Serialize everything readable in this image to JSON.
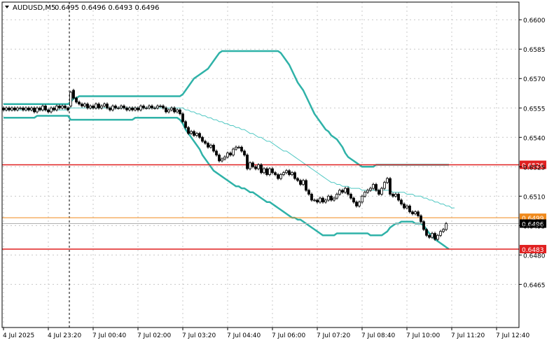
{
  "header": {
    "symbol": "AUDUSD,M5",
    "ohlc": "0.6495 0.6496 0.6493 0.6496"
  },
  "colors": {
    "background": "#ffffff",
    "grid": "#c8c8c8",
    "axis": "#000000",
    "candle": "#000000",
    "bollinger": "#2fb2a8",
    "ma": "#4ec7c2",
    "level_red": "#e02020",
    "level_orange": "#f08a1c",
    "price_line": "#b0b0b0"
  },
  "chart_data": {
    "type": "candlestick",
    "timeframe": "M5",
    "ylim": [
      0.6443,
      0.6609
    ],
    "yticks": [
      "0.6600",
      "0.6585",
      "0.6570",
      "0.6555",
      "0.6540",
      "0.6525",
      "0.6510",
      "0.6495",
      "0.6480",
      "0.6465"
    ],
    "ytick_values": [
      0.66,
      0.6585,
      0.657,
      0.6555,
      0.654,
      0.6525,
      0.651,
      0.6495,
      0.648,
      0.6465
    ],
    "xticks": [
      "4 Jul 2025",
      "4 Jul 23:20",
      "7 Jul 00:40",
      "7 Jul 02:00",
      "7 Jul 03:20",
      "7 Jul 04:40",
      "7 Jul 06:00",
      "7 Jul 07:20",
      "7 Jul 08:40",
      "7 Jul 10:00",
      "7 Jul 11:20",
      "7 Jul 12:40"
    ],
    "xtick_bar_index": [
      0,
      16,
      32,
      48,
      64,
      80,
      96,
      112,
      128,
      144,
      160,
      176
    ],
    "session_break_index": 24,
    "horizontal_levels": [
      {
        "label": "0.6526",
        "value": 0.6526,
        "color": "#e02020"
      },
      {
        "label": "0.6499",
        "value": 0.6499,
        "color": "#f08a1c"
      },
      {
        "label": "0.6496",
        "value": 0.6496,
        "color": "#b0b0b0",
        "current": true
      },
      {
        "label": "0.6483",
        "value": 0.6483,
        "color": "#e02020"
      }
    ],
    "close": [
      0.6554,
      0.6555,
      0.6554,
      0.6555,
      0.6554,
      0.6555,
      0.6555,
      0.6554,
      0.6555,
      0.6554,
      0.6555,
      0.6553,
      0.6555,
      0.6554,
      0.6556,
      0.6554,
      0.6553,
      0.6555,
      0.6554,
      0.6556,
      0.6555,
      0.6556,
      0.6555,
      0.6554,
      0.6563,
      0.656,
      0.6558,
      0.6557,
      0.6556,
      0.6557,
      0.6555,
      0.6556,
      0.6555,
      0.6557,
      0.6555,
      0.6556,
      0.6557,
      0.6555,
      0.6554,
      0.6556,
      0.6555,
      0.6555,
      0.6556,
      0.6555,
      0.6554,
      0.6555,
      0.6554,
      0.6555,
      0.6554,
      0.6556,
      0.6555,
      0.6555,
      0.6556,
      0.6555,
      0.6555,
      0.6556,
      0.6556,
      0.6555,
      0.6553,
      0.6554,
      0.6555,
      0.6553,
      0.6554,
      0.6552,
      0.6548,
      0.6545,
      0.6542,
      0.6543,
      0.6541,
      0.6542,
      0.654,
      0.6538,
      0.6537,
      0.6535,
      0.6536,
      0.6533,
      0.6531,
      0.6528,
      0.6529,
      0.653,
      0.6532,
      0.6531,
      0.6534,
      0.6535,
      0.6535,
      0.6533,
      0.6531,
      0.6524,
      0.6527,
      0.6525,
      0.6524,
      0.6526,
      0.6522,
      0.6524,
      0.6521,
      0.6524,
      0.6522,
      0.6521,
      0.6519,
      0.6521,
      0.6522,
      0.6523,
      0.6521,
      0.6522,
      0.6519,
      0.6518,
      0.6516,
      0.6518,
      0.6513,
      0.6511,
      0.6508,
      0.6508,
      0.6507,
      0.6509,
      0.6507,
      0.6508,
      0.651,
      0.6508,
      0.6509,
      0.6511,
      0.6513,
      0.6512,
      0.6514,
      0.6511,
      0.6509,
      0.6507,
      0.6505,
      0.6507,
      0.651,
      0.6512,
      0.6513,
      0.6514,
      0.6516,
      0.6513,
      0.6511,
      0.6514,
      0.6517,
      0.6519,
      0.6511,
      0.651,
      0.6511,
      0.6508,
      0.6506,
      0.6504,
      0.6505,
      0.6502,
      0.6501,
      0.6502,
      0.65,
      0.6497,
      0.6493,
      0.649,
      0.6489,
      0.6491,
      0.6488,
      0.649,
      0.6492,
      0.6493,
      0.6496
    ],
    "open": [
      0.6555,
      0.6554,
      0.6555,
      0.6554,
      0.6555,
      0.6554,
      0.6555,
      0.6555,
      0.6554,
      0.6555,
      0.6554,
      0.6555,
      0.6553,
      0.6555,
      0.6554,
      0.6556,
      0.6554,
      0.6553,
      0.6555,
      0.6554,
      0.6556,
      0.6555,
      0.6556,
      0.6555,
      0.6556,
      0.6564,
      0.656,
      0.6558,
      0.6557,
      0.6556,
      0.6557,
      0.6555,
      0.6556,
      0.6555,
      0.6557,
      0.6555,
      0.6556,
      0.6557,
      0.6555,
      0.6554,
      0.6556,
      0.6555,
      0.6555,
      0.6556,
      0.6555,
      0.6554,
      0.6555,
      0.6554,
      0.6555,
      0.6554,
      0.6556,
      0.6555,
      0.6555,
      0.6556,
      0.6555,
      0.6555,
      0.6556,
      0.6556,
      0.6555,
      0.6553,
      0.6554,
      0.6555,
      0.6553,
      0.6554,
      0.6552,
      0.6548,
      0.6545,
      0.6542,
      0.6543,
      0.6541,
      0.6542,
      0.654,
      0.6538,
      0.6537,
      0.6535,
      0.6536,
      0.6533,
      0.6531,
      0.6528,
      0.6529,
      0.653,
      0.6532,
      0.6531,
      0.6534,
      0.6535,
      0.6535,
      0.6533,
      0.6531,
      0.6524,
      0.6527,
      0.6525,
      0.6524,
      0.6526,
      0.6522,
      0.6524,
      0.6521,
      0.6524,
      0.6522,
      0.6521,
      0.6519,
      0.6521,
      0.6522,
      0.6523,
      0.6521,
      0.6522,
      0.6519,
      0.6518,
      0.6516,
      0.6518,
      0.6513,
      0.6511,
      0.6508,
      0.6508,
      0.6507,
      0.6509,
      0.6507,
      0.6508,
      0.651,
      0.6508,
      0.6509,
      0.6511,
      0.6513,
      0.6512,
      0.6514,
      0.6511,
      0.6509,
      0.6507,
      0.6505,
      0.6507,
      0.651,
      0.6512,
      0.6513,
      0.6514,
      0.6516,
      0.6513,
      0.6511,
      0.6514,
      0.6517,
      0.6519,
      0.6511,
      0.651,
      0.6511,
      0.6508,
      0.6506,
      0.6504,
      0.6505,
      0.6502,
      0.6501,
      0.6502,
      0.65,
      0.6497,
      0.6493,
      0.649,
      0.6489,
      0.6491,
      0.6488,
      0.649,
      0.6492,
      0.6493
    ],
    "bollinger_upper": [
      0.6557,
      0.6557,
      0.6557,
      0.6557,
      0.6557,
      0.6557,
      0.6557,
      0.6557,
      0.6557,
      0.6557,
      0.6557,
      0.6557,
      0.6557,
      0.6557,
      0.6557,
      0.6557,
      0.6557,
      0.6557,
      0.6557,
      0.6557,
      0.6557,
      0.6557,
      0.6557,
      0.6557,
      0.6558,
      0.656,
      0.656,
      0.6561,
      0.6561,
      0.6561,
      0.6561,
      0.6561,
      0.6561,
      0.6561,
      0.6561,
      0.6561,
      0.6561,
      0.6561,
      0.6561,
      0.6561,
      0.6561,
      0.6561,
      0.6561,
      0.6561,
      0.6561,
      0.6561,
      0.6561,
      0.6561,
      0.6561,
      0.6561,
      0.6561,
      0.6561,
      0.6561,
      0.6561,
      0.6561,
      0.6561,
      0.6561,
      0.6561,
      0.6561,
      0.6561,
      0.6561,
      0.6561,
      0.6561,
      0.6561,
      0.6562,
      0.6564,
      0.6566,
      0.6568,
      0.657,
      0.6571,
      0.6572,
      0.6573,
      0.6574,
      0.6575,
      0.6577,
      0.6579,
      0.6581,
      0.6583,
      0.6584,
      0.6584,
      0.6584,
      0.6584,
      0.6584,
      0.6584,
      0.6584,
      0.6584,
      0.6584,
      0.6584,
      0.6584,
      0.6584,
      0.6584,
      0.6584,
      0.6584,
      0.6584,
      0.6584,
      0.6584,
      0.6584,
      0.6584,
      0.6584,
      0.6583,
      0.6581,
      0.6579,
      0.6577,
      0.6574,
      0.6571,
      0.6568,
      0.6566,
      0.6564,
      0.6561,
      0.6558,
      0.6555,
      0.6552,
      0.655,
      0.6548,
      0.6546,
      0.6544,
      0.6543,
      0.6541,
      0.654,
      0.6539,
      0.6537,
      0.6535,
      0.6532,
      0.653,
      0.6529,
      0.6528,
      0.6527,
      0.6526,
      0.6525,
      0.6525,
      0.6525,
      0.6525,
      0.6525,
      0.6526,
      0.6526,
      0.6526,
      0.6526,
      0.6526,
      0.6526,
      0.6526,
      0.6526,
      0.6526,
      0.6526,
      0.6526,
      0.6526,
      0.6526,
      0.6526,
      0.6526,
      0.6526,
      0.6526,
      0.6526,
      0.6526,
      0.6526,
      0.6526,
      0.6526,
      0.6526,
      0.6526,
      0.6526,
      0.6526,
      0.6526
    ],
    "bollinger_lower": [
      0.655,
      0.655,
      0.655,
      0.655,
      0.655,
      0.655,
      0.655,
      0.655,
      0.655,
      0.655,
      0.655,
      0.655,
      0.6551,
      0.6551,
      0.6551,
      0.6551,
      0.6551,
      0.6551,
      0.6551,
      0.6551,
      0.6551,
      0.6551,
      0.6551,
      0.6551,
      0.6549,
      0.6549,
      0.6549,
      0.6549,
      0.6549,
      0.6549,
      0.6549,
      0.6549,
      0.6549,
      0.6549,
      0.6549,
      0.6549,
      0.6549,
      0.6549,
      0.6549,
      0.6549,
      0.6549,
      0.6549,
      0.6549,
      0.6549,
      0.6549,
      0.6549,
      0.6549,
      0.655,
      0.655,
      0.655,
      0.655,
      0.655,
      0.655,
      0.655,
      0.655,
      0.655,
      0.655,
      0.655,
      0.655,
      0.655,
      0.655,
      0.655,
      0.655,
      0.6549,
      0.6547,
      0.6544,
      0.6542,
      0.654,
      0.6538,
      0.6536,
      0.6534,
      0.6531,
      0.6529,
      0.6527,
      0.6525,
      0.6523,
      0.6522,
      0.6521,
      0.652,
      0.6519,
      0.6518,
      0.6517,
      0.6516,
      0.6515,
      0.6515,
      0.6514,
      0.6514,
      0.6513,
      0.6512,
      0.6512,
      0.6511,
      0.651,
      0.6509,
      0.6508,
      0.6507,
      0.6507,
      0.6506,
      0.6505,
      0.6504,
      0.6503,
      0.6502,
      0.6501,
      0.65,
      0.6499,
      0.6499,
      0.6498,
      0.6498,
      0.6497,
      0.6496,
      0.6495,
      0.6494,
      0.6493,
      0.6492,
      0.6491,
      0.649,
      0.649,
      0.649,
      0.649,
      0.649,
      0.6491,
      0.6491,
      0.6491,
      0.6491,
      0.6491,
      0.6491,
      0.6491,
      0.6491,
      0.6491,
      0.6491,
      0.6491,
      0.6491,
      0.649,
      0.649,
      0.649,
      0.649,
      0.649,
      0.6491,
      0.6492,
      0.6494,
      0.6495,
      0.6496,
      0.6496,
      0.6497,
      0.6497,
      0.6497,
      0.6497,
      0.6497,
      0.6496,
      0.6496,
      0.6496,
      0.6495,
      0.6493,
      0.6491,
      0.649,
      0.6488,
      0.6487,
      0.6486,
      0.6485,
      0.6484,
      0.6483
    ],
    "moving_average": [
      0.6554,
      0.6554,
      0.6554,
      0.6554,
      0.6554,
      0.6554,
      0.6554,
      0.6554,
      0.6554,
      0.6554,
      0.6554,
      0.6554,
      0.6554,
      0.6554,
      0.6554,
      0.6554,
      0.6554,
      0.6554,
      0.6554,
      0.6554,
      0.6554,
      0.6554,
      0.6554,
      0.6554,
      0.6555,
      0.6555,
      0.6555,
      0.6555,
      0.6555,
      0.6555,
      0.6555,
      0.6555,
      0.6555,
      0.6555,
      0.6555,
      0.6555,
      0.6555,
      0.6555,
      0.6555,
      0.6555,
      0.6555,
      0.6555,
      0.6555,
      0.6555,
      0.6555,
      0.6555,
      0.6555,
      0.6555,
      0.6555,
      0.6555,
      0.6555,
      0.6555,
      0.6555,
      0.6555,
      0.6555,
      0.6555,
      0.6555,
      0.6555,
      0.6555,
      0.6555,
      0.6555,
      0.6555,
      0.6555,
      0.6555,
      0.6555,
      0.6554,
      0.6554,
      0.6553,
      0.6553,
      0.6552,
      0.6552,
      0.6551,
      0.6551,
      0.655,
      0.655,
      0.6549,
      0.6549,
      0.6548,
      0.6548,
      0.6547,
      0.6547,
      0.6546,
      0.6546,
      0.6545,
      0.6545,
      0.6544,
      0.6544,
      0.6543,
      0.6542,
      0.6542,
      0.6541,
      0.654,
      0.654,
      0.6539,
      0.6538,
      0.6538,
      0.6537,
      0.6536,
      0.6535,
      0.6534,
      0.6533,
      0.6533,
      0.6532,
      0.6531,
      0.653,
      0.6529,
      0.6528,
      0.6527,
      0.6526,
      0.6525,
      0.6524,
      0.6523,
      0.6522,
      0.6521,
      0.652,
      0.6519,
      0.6518,
      0.6517,
      0.6517,
      0.6516,
      0.6516,
      0.6515,
      0.6515,
      0.6515,
      0.6514,
      0.6514,
      0.6514,
      0.6514,
      0.6513,
      0.6513,
      0.6513,
      0.6513,
      0.6513,
      0.6513,
      0.6513,
      0.6513,
      0.6513,
      0.6513,
      0.6513,
      0.6512,
      0.6512,
      0.6512,
      0.6512,
      0.6512,
      0.6511,
      0.6511,
      0.6511,
      0.651,
      0.651,
      0.651,
      0.6509,
      0.6509,
      0.6508,
      0.6508,
      0.6507,
      0.6507,
      0.6506,
      0.6506,
      0.6505,
      0.6505,
      0.6504,
      0.6504
    ]
  }
}
